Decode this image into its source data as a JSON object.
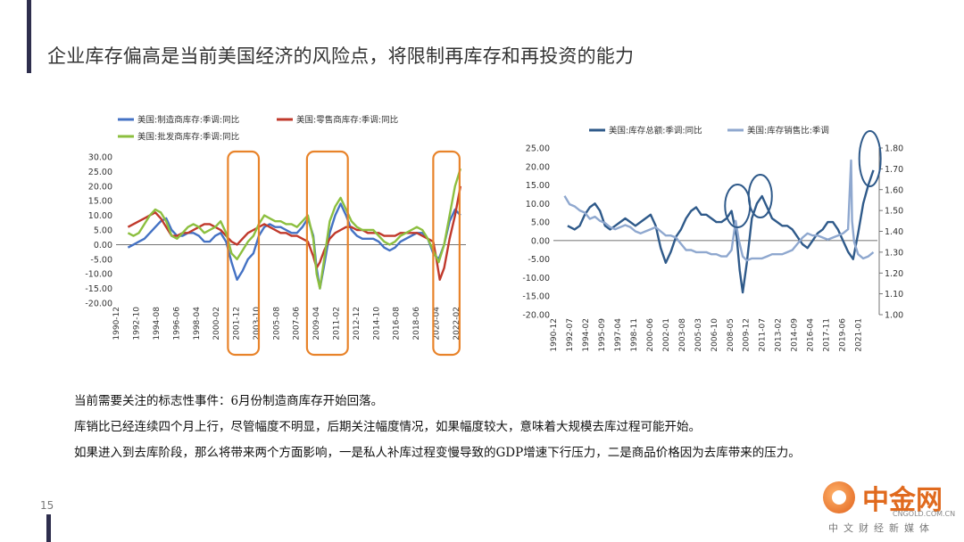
{
  "slide": {
    "title": "企业库存偏高是当前美国经济的风险点，将限制再库存和再投资的能力",
    "page_number": "15",
    "notes": [
      "当前需要关注的标志性事件：6月份制造商库存开始回落。",
      "库销比已经连续四个月上行，尽管幅度不明显，后期关注幅度情况，如果幅度较大，意味着大规模去库过程可能开始。",
      "如果进入到去库阶段，那么将带来两个方面影响，一是私人补库过程变慢导致的GDP增速下行压力，二是商品价格因为去库带来的压力。"
    ]
  },
  "logo": {
    "name": "中金网",
    "url": "CNGOLD.COM.CN",
    "tagline": "中文财经新媒体"
  },
  "colors": {
    "accent_bar": "#2e2e4d",
    "highlight_box": "#e8832a",
    "circle": "#2f5a8a"
  },
  "chart_data": [
    {
      "type": "line",
      "ylim": [
        -20,
        30
      ],
      "yticks": [
        "30.00",
        "25.00",
        "20.00",
        "15.00",
        "10.00",
        "5.00",
        "0.00",
        "-5.00",
        "-10.00",
        "-15.00",
        "-20.00"
      ],
      "xticks": [
        "1990-12",
        "1992-10",
        "1994-08",
        "1996-06",
        "1998-04",
        "2000-02",
        "2001-12",
        "2003-10",
        "2005-08",
        "2007-06",
        "2009-04",
        "2011-02",
        "2012-12",
        "2014-10",
        "2016-08",
        "2018-06",
        "2020-04",
        "2022-02"
      ],
      "legend": [
        "美国:制造商库存:季调:同比",
        "美国:零售商库存:季调:同比",
        "美国:批发商库存:季调:同比"
      ],
      "highlight_ranges": [
        [
          "2001-03",
          "2004-01"
        ],
        [
          "2008-06",
          "2012-03"
        ],
        [
          "2020-01",
          "2022-06"
        ]
      ],
      "series": [
        {
          "name": "美国:制造商库存:季调:同比",
          "color": "#4472c4",
          "x": [
            1992.0,
            1992.5,
            1993.0,
            1993.5,
            1994.0,
            1994.5,
            1995.0,
            1995.5,
            1996.0,
            1996.5,
            1997.0,
            1997.5,
            1998.0,
            1998.5,
            1999.0,
            1999.5,
            2000.0,
            2000.5,
            2001.0,
            2001.5,
            2002.0,
            2002.5,
            2003.0,
            2003.5,
            2004.0,
            2004.5,
            2005.0,
            2005.5,
            2006.0,
            2006.5,
            2007.0,
            2007.5,
            2008.0,
            2008.5,
            2009.0,
            2009.3,
            2009.6,
            2010.0,
            2010.5,
            2011.0,
            2011.5,
            2012.0,
            2012.5,
            2013.0,
            2013.5,
            2014.0,
            2014.5,
            2015.0,
            2015.5,
            2016.0,
            2016.5,
            2017.0,
            2017.5,
            2018.0,
            2018.5,
            2019.0,
            2019.5,
            2020.0,
            2020.5,
            2021.0,
            2021.5,
            2022.0,
            2022.5
          ],
          "y": [
            -1,
            0,
            1,
            2,
            4,
            6,
            8,
            9,
            5,
            3,
            3,
            4,
            4,
            3,
            1,
            1,
            3,
            4,
            1,
            -6,
            -12,
            -9,
            -5,
            -3,
            3,
            6,
            7,
            6,
            6,
            5,
            4,
            4,
            6,
            9,
            3,
            -8,
            -15,
            -7,
            4,
            10,
            14,
            10,
            5,
            3,
            2,
            2,
            2,
            1,
            -1,
            -2,
            -1,
            1,
            2,
            3,
            4,
            4,
            2,
            -3,
            -5,
            0,
            8,
            12,
            10
          ]
        },
        {
          "name": "美国:零售商库存:季调:同比",
          "color": "#c0392b",
          "x": [
            1992.0,
            1992.5,
            1993.0,
            1993.5,
            1994.0,
            1994.5,
            1995.0,
            1995.5,
            1996.0,
            1996.5,
            1997.0,
            1997.5,
            1998.0,
            1998.5,
            1999.0,
            1999.5,
            2000.0,
            2000.5,
            2001.0,
            2001.5,
            2002.0,
            2002.5,
            2003.0,
            2003.5,
            2004.0,
            2004.5,
            2005.0,
            2005.5,
            2006.0,
            2006.5,
            2007.0,
            2007.5,
            2008.0,
            2008.5,
            2009.0,
            2009.3,
            2009.6,
            2010.0,
            2010.5,
            2011.0,
            2011.5,
            2012.0,
            2012.5,
            2013.0,
            2013.5,
            2014.0,
            2014.5,
            2015.0,
            2015.5,
            2016.0,
            2016.5,
            2017.0,
            2017.5,
            2018.0,
            2018.5,
            2019.0,
            2019.5,
            2020.0,
            2020.3,
            2020.6,
            2021.0,
            2021.5,
            2022.0,
            2022.5
          ],
          "y": [
            6,
            7,
            8,
            9,
            10,
            11,
            9,
            6,
            3,
            3,
            4,
            4,
            5,
            6,
            7,
            7,
            6,
            5,
            3,
            1,
            0,
            2,
            4,
            5,
            6,
            7,
            6,
            5,
            4,
            4,
            3,
            3,
            2,
            1,
            -4,
            -8,
            -6,
            -2,
            2,
            4,
            5,
            6,
            6,
            5,
            5,
            4,
            4,
            4,
            3,
            3,
            3,
            4,
            4,
            4,
            4,
            3,
            2,
            1,
            -5,
            -12,
            -8,
            2,
            10,
            20
          ]
        },
        {
          "name": "美国:批发商库存:季调:同比",
          "color": "#8cbf3f",
          "x": [
            1992.0,
            1992.5,
            1993.0,
            1993.5,
            1994.0,
            1994.5,
            1995.0,
            1995.5,
            1996.0,
            1996.5,
            1997.0,
            1997.5,
            1998.0,
            1998.5,
            1999.0,
            1999.5,
            2000.0,
            2000.5,
            2001.0,
            2001.5,
            2002.0,
            2002.5,
            2003.0,
            2003.5,
            2004.0,
            2004.5,
            2005.0,
            2005.5,
            2006.0,
            2006.5,
            2007.0,
            2007.5,
            2008.0,
            2008.5,
            2009.0,
            2009.3,
            2009.6,
            2010.0,
            2010.5,
            2011.0,
            2011.5,
            2012.0,
            2012.5,
            2013.0,
            2013.5,
            2014.0,
            2014.5,
            2015.0,
            2015.5,
            2016.0,
            2016.5,
            2017.0,
            2017.5,
            2018.0,
            2018.5,
            2019.0,
            2019.5,
            2020.0,
            2020.5,
            2021.0,
            2021.5,
            2022.0,
            2022.5
          ],
          "y": [
            4,
            3,
            4,
            7,
            10,
            12,
            11,
            8,
            3,
            2,
            4,
            6,
            7,
            6,
            4,
            5,
            6,
            8,
            4,
            -3,
            -5,
            -2,
            1,
            3,
            7,
            10,
            9,
            8,
            8,
            7,
            7,
            6,
            8,
            10,
            2,
            -10,
            -15,
            -5,
            8,
            13,
            16,
            12,
            8,
            6,
            5,
            5,
            5,
            3,
            1,
            0,
            1,
            3,
            4,
            5,
            6,
            5,
            2,
            -2,
            -6,
            0,
            10,
            20,
            26
          ]
        }
      ]
    },
    {
      "type": "line",
      "ylim": [
        -20,
        25
      ],
      "y2lim": [
        1.0,
        1.8
      ],
      "yticks": [
        "25.00",
        "20.00",
        "15.00",
        "10.00",
        "5.00",
        "0.00",
        "-5.00",
        "-10.00",
        "-15.00",
        "-20.00"
      ],
      "y2ticks": [
        "1.80",
        "1.70",
        "1.60",
        "1.50",
        "1.40",
        "1.30",
        "1.20",
        "1.10",
        "1.00"
      ],
      "xticks": [
        "1990-12",
        "1992-07",
        "1994-02",
        "1995-09",
        "1997-04",
        "1998-11",
        "2000-06",
        "2002-01",
        "2003-08",
        "2005-03",
        "2006-10",
        "2008-05",
        "2009-12",
        "2011-07",
        "2013-02",
        "2014-09",
        "2016-04",
        "2017-11",
        "2019-06",
        "2021-01"
      ],
      "legend": [
        "美国:库存总额:季调:同比",
        "美国:库存销售比:季调"
      ],
      "highlight_markers": [
        "2009-02",
        "2011-05",
        "2022-03"
      ],
      "series": [
        {
          "name": "美国:库存总额:季调:同比",
          "color": "#2f5a8a",
          "axis": "left",
          "x": [
            1992.3,
            1993.0,
            1993.5,
            1994.0,
            1994.5,
            1995.0,
            1995.5,
            1996.0,
            1996.5,
            1997.0,
            1997.5,
            1998.0,
            1998.5,
            1999.0,
            1999.5,
            2000.0,
            2000.5,
            2001.0,
            2001.5,
            2002.0,
            2002.5,
            2003.0,
            2003.5,
            2004.0,
            2004.5,
            2005.0,
            2005.5,
            2006.0,
            2006.5,
            2007.0,
            2007.5,
            2008.0,
            2008.5,
            2009.0,
            2009.3,
            2009.6,
            2010.0,
            2010.5,
            2011.0,
            2011.5,
            2012.0,
            2012.5,
            2013.0,
            2013.5,
            2014.0,
            2014.5,
            2015.0,
            2015.5,
            2016.0,
            2016.5,
            2017.0,
            2017.5,
            2018.0,
            2018.5,
            2019.0,
            2019.5,
            2020.0,
            2020.5,
            2021.0,
            2021.5,
            2022.0,
            2022.5
          ],
          "y": [
            4,
            3,
            4,
            7,
            9,
            10,
            8,
            4,
            3,
            4,
            5,
            6,
            5,
            4,
            5,
            6,
            7,
            4,
            -2,
            -6,
            -3,
            1,
            3,
            6,
            8,
            9,
            7,
            7,
            6,
            5,
            5,
            6,
            8,
            1,
            -8,
            -14,
            -6,
            6,
            10,
            12,
            9,
            6,
            5,
            4,
            4,
            3,
            1,
            -1,
            -2,
            0,
            2,
            3,
            5,
            5,
            3,
            0,
            -3,
            -5,
            2,
            10,
            15,
            19
          ]
        },
        {
          "name": "美国:库存销售比:季调",
          "color": "#8fa8cf",
          "axis": "right",
          "x": [
            1992.0,
            1992.5,
            1993.0,
            1993.5,
            1994.0,
            1994.5,
            1995.0,
            1995.5,
            1996.0,
            1996.5,
            1997.0,
            1997.5,
            1998.0,
            1998.5,
            1999.0,
            1999.5,
            2000.0,
            2000.5,
            2001.0,
            2001.5,
            2002.0,
            2002.5,
            2003.0,
            2003.5,
            2004.0,
            2004.5,
            2005.0,
            2005.5,
            2006.0,
            2006.5,
            2007.0,
            2007.5,
            2008.0,
            2008.5,
            2008.9,
            2009.2,
            2009.6,
            2010.0,
            2010.5,
            2011.0,
            2011.5,
            2012.0,
            2012.5,
            2013.0,
            2013.5,
            2014.0,
            2014.5,
            2015.0,
            2015.5,
            2016.0,
            2016.5,
            2017.0,
            2017.5,
            2018.0,
            2018.5,
            2019.0,
            2019.5,
            2020.0,
            2020.3,
            2020.4,
            2020.6,
            2021.0,
            2021.5,
            2022.0,
            2022.5
          ],
          "y": [
            1.57,
            1.53,
            1.52,
            1.5,
            1.49,
            1.46,
            1.47,
            1.45,
            1.44,
            1.42,
            1.41,
            1.42,
            1.43,
            1.42,
            1.4,
            1.39,
            1.4,
            1.41,
            1.42,
            1.4,
            1.38,
            1.38,
            1.37,
            1.34,
            1.31,
            1.31,
            1.3,
            1.3,
            1.3,
            1.29,
            1.29,
            1.28,
            1.28,
            1.31,
            1.45,
            1.36,
            1.28,
            1.26,
            1.27,
            1.27,
            1.27,
            1.28,
            1.29,
            1.29,
            1.29,
            1.3,
            1.31,
            1.34,
            1.37,
            1.39,
            1.38,
            1.38,
            1.37,
            1.36,
            1.37,
            1.38,
            1.39,
            1.41,
            1.74,
            1.45,
            1.35,
            1.29,
            1.27,
            1.28,
            1.3
          ]
        }
      ]
    }
  ]
}
